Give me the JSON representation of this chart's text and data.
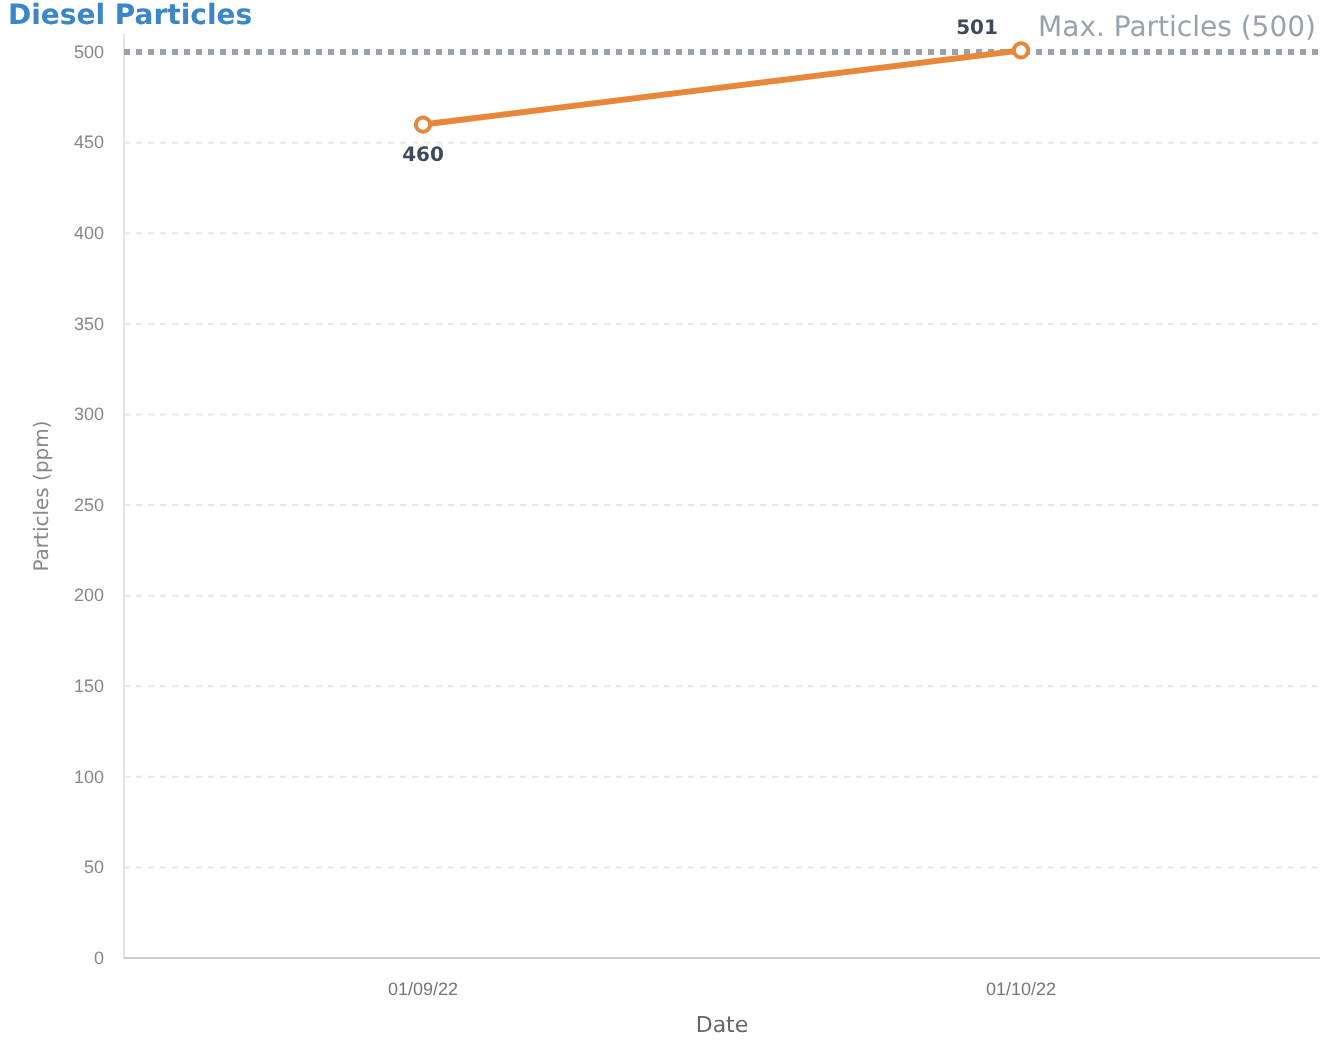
{
  "chart_data": {
    "type": "line",
    "title": "Diesel Particles",
    "xlabel": "Date",
    "ylabel": "Particles (ppm)",
    "categories": [
      "01/09/22",
      "01/10/22"
    ],
    "series": [
      {
        "color": "#e8873a",
        "values": [
          460,
          501
        ]
      }
    ],
    "ylim": [
      0,
      510
    ],
    "yticks": [
      0,
      50,
      100,
      150,
      200,
      250,
      300,
      350,
      400,
      450,
      500
    ],
    "grid": "y",
    "marker": "circle",
    "data_labels": true,
    "ref_lines": [
      {
        "axis": "y",
        "value": 500,
        "label": "Max. Particles (500)",
        "color": "#9aa3ad",
        "line_style": "dotted"
      }
    ]
  }
}
